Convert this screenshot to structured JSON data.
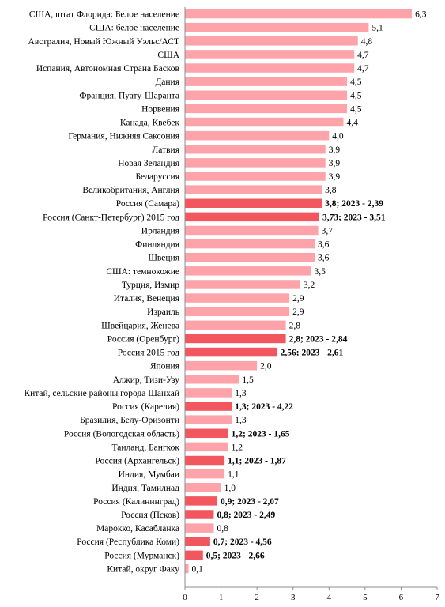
{
  "chart_data": {
    "type": "bar",
    "orientation": "horizontal",
    "xlim": [
      0,
      7
    ],
    "x_ticks": [
      "0",
      "1",
      "2",
      "3",
      "4",
      "5",
      "6",
      "7"
    ],
    "grid": false,
    "colors": {
      "normal": "#ffa3aa",
      "highlight": "#f2575f"
    },
    "bars": [
      {
        "label": "США, штат Флорида: Белое население",
        "value": 6.3,
        "value_label": "6,3",
        "highlight": false
      },
      {
        "label": "США: белое население",
        "value": 5.1,
        "value_label": "5,1",
        "highlight": false
      },
      {
        "label": "Австралия, Новый Южный Уэльс/АСТ",
        "value": 4.8,
        "value_label": "4,8",
        "highlight": false
      },
      {
        "label": "США",
        "value": 4.7,
        "value_label": "4,7",
        "highlight": false
      },
      {
        "label": "Испания, Автономная Страна Басков",
        "value": 4.7,
        "value_label": "4,7",
        "highlight": false
      },
      {
        "label": "Дания",
        "value": 4.5,
        "value_label": "4,5",
        "highlight": false
      },
      {
        "label": "Франция, Пуату-Шаранта",
        "value": 4.5,
        "value_label": "4,5",
        "highlight": false
      },
      {
        "label": "Норвения",
        "value": 4.5,
        "value_label": "4,5",
        "highlight": false
      },
      {
        "label": "Канада, Квебек",
        "value": 4.4,
        "value_label": "4,4",
        "highlight": false
      },
      {
        "label": "Германия, Нижняя Саксония",
        "value": 4.0,
        "value_label": "4,0",
        "highlight": false
      },
      {
        "label": "Латвия",
        "value": 3.9,
        "value_label": "3,9",
        "highlight": false
      },
      {
        "label": "Новая Зеландия",
        "value": 3.9,
        "value_label": "3,9",
        "highlight": false
      },
      {
        "label": "Беларуссия",
        "value": 3.9,
        "value_label": "3,9",
        "highlight": false
      },
      {
        "label": "Великобритания, Англия",
        "value": 3.8,
        "value_label": "3,8",
        "highlight": false
      },
      {
        "label": "Россия (Самара)",
        "value": 3.8,
        "value_label": "3,8; 2023 - 2,39",
        "highlight": true
      },
      {
        "label": "Россия (Санкт-Петербург) 2015 год",
        "value": 3.73,
        "value_label": "3,73; 2023 - 3,51",
        "highlight": true
      },
      {
        "label": "Ирландия",
        "value": 3.7,
        "value_label": "3,7",
        "highlight": false
      },
      {
        "label": "Финляндия",
        "value": 3.6,
        "value_label": "3,6",
        "highlight": false
      },
      {
        "label": "Швеция",
        "value": 3.6,
        "value_label": "3,6",
        "highlight": false
      },
      {
        "label": "США: темнокожие",
        "value": 3.5,
        "value_label": "3,5",
        "highlight": false
      },
      {
        "label": "Турция, Измир",
        "value": 3.2,
        "value_label": "3,2",
        "highlight": false
      },
      {
        "label": "Италия, Венеция",
        "value": 2.9,
        "value_label": "2,9",
        "highlight": false
      },
      {
        "label": "Израиль",
        "value": 2.9,
        "value_label": "2,9",
        "highlight": false
      },
      {
        "label": "Швейцария, Женева",
        "value": 2.8,
        "value_label": "2,8",
        "highlight": false
      },
      {
        "label": "Россия (Оренбург)",
        "value": 2.8,
        "value_label": "2,8; 2023 - 2,84",
        "highlight": true
      },
      {
        "label": "Россия 2015 год",
        "value": 2.56,
        "value_label": "2,56; 2023 - 2,61",
        "highlight": true
      },
      {
        "label": "Япония",
        "value": 2.0,
        "value_label": "2,0",
        "highlight": false
      },
      {
        "label": "Алжир, Тизи-Узу",
        "value": 1.5,
        "value_label": "1,5",
        "highlight": false
      },
      {
        "label": "Китай, сельские районы города Шанхай",
        "value": 1.3,
        "value_label": "1,3",
        "highlight": false
      },
      {
        "label": "Россия (Карелия)",
        "value": 1.3,
        "value_label": "1,3; 2023 - 4,22",
        "highlight": true
      },
      {
        "label": "Бразилия, Белу-Оризонти",
        "value": 1.3,
        "value_label": "1,3",
        "highlight": false
      },
      {
        "label": "Россия (Вологодская область)",
        "value": 1.2,
        "value_label": "1,2; 2023 - 1,65",
        "highlight": true
      },
      {
        "label": "Таиланд, Бангкок",
        "value": 1.2,
        "value_label": "1,2",
        "highlight": false
      },
      {
        "label": "Россия (Архангельск)",
        "value": 1.1,
        "value_label": "1,1; 2023 - 1,87",
        "highlight": true
      },
      {
        "label": "Индия, Мумбаи",
        "value": 1.1,
        "value_label": "1,1",
        "highlight": false
      },
      {
        "label": "Индия, Тамилнад",
        "value": 1.0,
        "value_label": "1,0",
        "highlight": false
      },
      {
        "label": "Россия (Калининград)",
        "value": 0.9,
        "value_label": "0,9; 2023 - 2,07",
        "highlight": true
      },
      {
        "label": "Россия (Псков)",
        "value": 0.8,
        "value_label": "0,8; 2023 - 2,49",
        "highlight": true
      },
      {
        "label": "Марокко, Касабланка",
        "value": 0.8,
        "value_label": "0,8",
        "highlight": false
      },
      {
        "label": "Россия (Республика Коми)",
        "value": 0.7,
        "value_label": "0,7; 2023 - 4,56",
        "highlight": true
      },
      {
        "label": "Россия (Мурманск)",
        "value": 0.5,
        "value_label": "0,5; 2023 - 2,66",
        "highlight": true
      },
      {
        "label": "Китай, округ Факу",
        "value": 0.1,
        "value_label": "0,1",
        "highlight": false
      }
    ]
  }
}
